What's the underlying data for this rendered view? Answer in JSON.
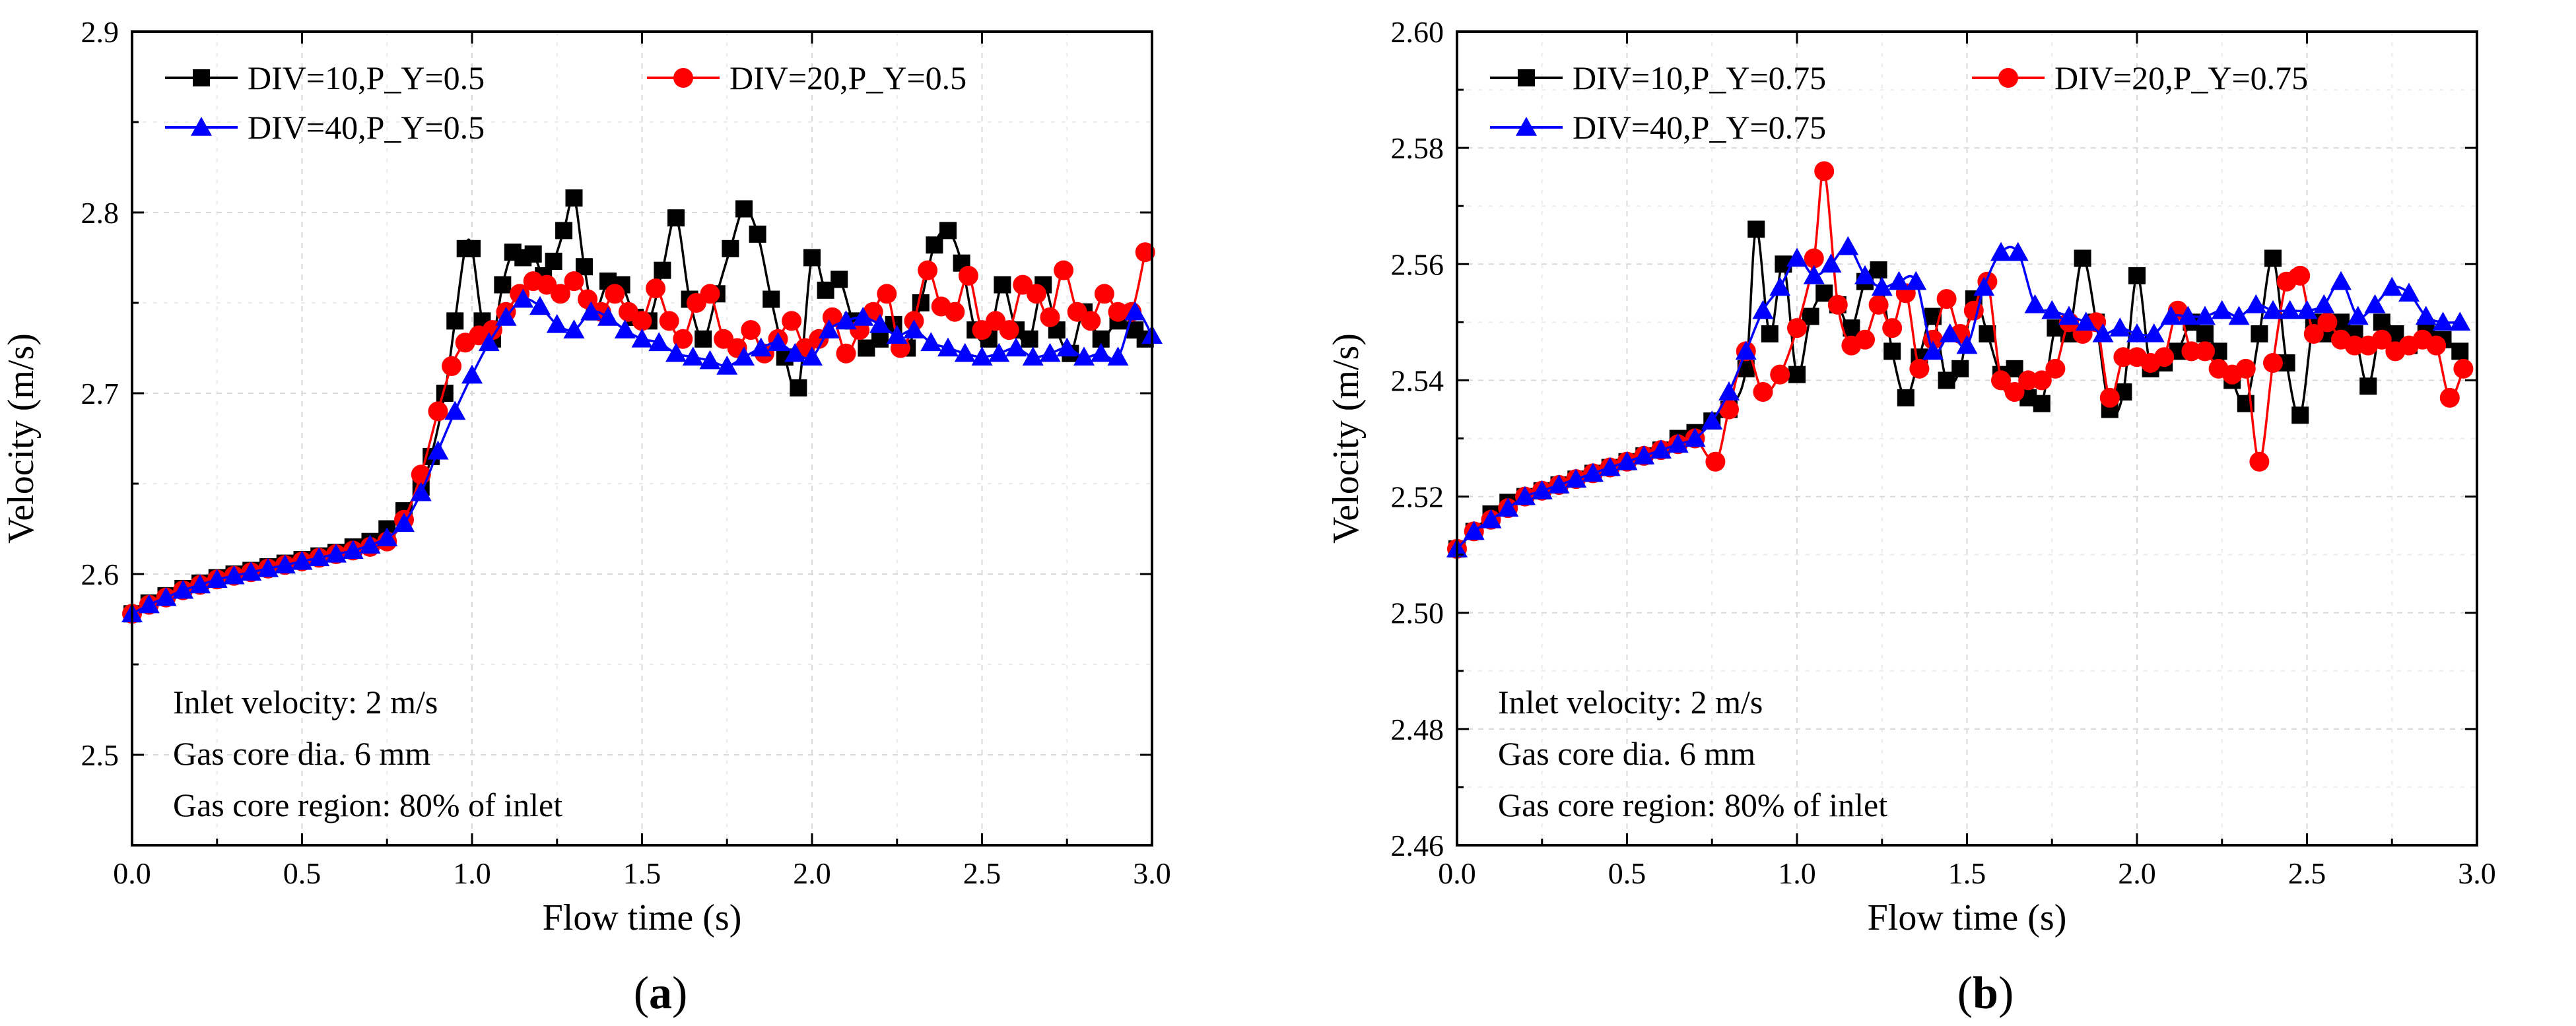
{
  "chart_data": [
    {
      "type": "line",
      "panel_label": "a",
      "xlabel": "Flow time (s)",
      "ylabel": "Velocity (m/s)",
      "xlim": [
        0.0,
        3.0
      ],
      "ylim": [
        2.45,
        2.9
      ],
      "xticks": [
        "0.0",
        "0.5",
        "1.0",
        "1.5",
        "2.0",
        "2.5",
        "3.0"
      ],
      "yticks": [
        "2.5",
        "2.6",
        "2.7",
        "2.8",
        "2.9"
      ],
      "ytick_values": [
        2.5,
        2.6,
        2.7,
        2.8,
        2.9
      ],
      "grid": true,
      "legend_position": "top-left",
      "annotations": [
        "Inlet velocity: 2 m/s",
        "Gas core dia. 6 mm",
        "Gas core region: 80% of inlet"
      ],
      "series": [
        {
          "name": "DIV=10,P_Y=0.5",
          "color": "#000000",
          "marker": "square",
          "x": [
            0.0,
            0.05,
            0.1,
            0.15,
            0.2,
            0.25,
            0.3,
            0.35,
            0.4,
            0.45,
            0.5,
            0.55,
            0.6,
            0.65,
            0.7,
            0.75,
            0.8,
            0.85,
            0.88,
            0.92,
            0.95,
            0.98,
            1.0,
            1.03,
            1.06,
            1.09,
            1.12,
            1.15,
            1.18,
            1.21,
            1.24,
            1.27,
            1.3,
            1.33,
            1.36,
            1.4,
            1.44,
            1.48,
            1.52,
            1.56,
            1.6,
            1.64,
            1.68,
            1.72,
            1.76,
            1.8,
            1.84,
            1.88,
            1.92,
            1.96,
            2.0,
            2.04,
            2.08,
            2.12,
            2.16,
            2.2,
            2.24,
            2.28,
            2.32,
            2.36,
            2.4,
            2.44,
            2.48,
            2.52,
            2.56,
            2.6,
            2.64,
            2.68,
            2.72,
            2.76,
            2.8,
            2.85,
            2.9,
            2.95,
            2.98
          ],
          "y": [
            2.578,
            2.584,
            2.588,
            2.592,
            2.595,
            2.598,
            2.6,
            2.602,
            2.604,
            2.606,
            2.608,
            2.61,
            2.612,
            2.615,
            2.618,
            2.625,
            2.635,
            2.648,
            2.665,
            2.7,
            2.74,
            2.78,
            2.78,
            2.74,
            2.73,
            2.76,
            2.778,
            2.775,
            2.777,
            2.765,
            2.773,
            2.79,
            2.808,
            2.77,
            2.745,
            2.762,
            2.76,
            2.742,
            2.74,
            2.768,
            2.797,
            2.752,
            2.73,
            2.755,
            2.78,
            2.802,
            2.788,
            2.752,
            2.72,
            2.703,
            2.775,
            2.757,
            2.763,
            2.74,
            2.725,
            2.73,
            2.738,
            2.725,
            2.75,
            2.782,
            2.79,
            2.772,
            2.735,
            2.73,
            2.76,
            2.735,
            2.73,
            2.76,
            2.735,
            2.722,
            2.745,
            2.73,
            2.74,
            2.735,
            2.73
          ]
        },
        {
          "name": "DIV=20,P_Y=0.5",
          "color": "#ff0000",
          "marker": "circle",
          "x": [
            0.0,
            0.05,
            0.1,
            0.15,
            0.2,
            0.25,
            0.3,
            0.35,
            0.4,
            0.45,
            0.5,
            0.55,
            0.6,
            0.65,
            0.7,
            0.75,
            0.8,
            0.85,
            0.9,
            0.94,
            0.98,
            1.02,
            1.06,
            1.1,
            1.14,
            1.18,
            1.22,
            1.26,
            1.3,
            1.34,
            1.38,
            1.42,
            1.46,
            1.5,
            1.54,
            1.58,
            1.62,
            1.66,
            1.7,
            1.74,
            1.78,
            1.82,
            1.86,
            1.9,
            1.94,
            1.98,
            2.02,
            2.06,
            2.1,
            2.14,
            2.18,
            2.22,
            2.26,
            2.3,
            2.34,
            2.38,
            2.42,
            2.46,
            2.5,
            2.54,
            2.58,
            2.62,
            2.66,
            2.7,
            2.74,
            2.78,
            2.82,
            2.86,
            2.9,
            2.94,
            2.98
          ],
          "y": [
            2.578,
            2.583,
            2.587,
            2.591,
            2.594,
            2.597,
            2.599,
            2.601,
            2.603,
            2.605,
            2.607,
            2.609,
            2.611,
            2.613,
            2.615,
            2.618,
            2.63,
            2.655,
            2.69,
            2.715,
            2.728,
            2.732,
            2.735,
            2.745,
            2.755,
            2.762,
            2.76,
            2.755,
            2.762,
            2.752,
            2.745,
            2.755,
            2.745,
            2.74,
            2.758,
            2.74,
            2.73,
            2.75,
            2.755,
            2.73,
            2.725,
            2.735,
            2.722,
            2.73,
            2.74,
            2.725,
            2.73,
            2.742,
            2.722,
            2.735,
            2.745,
            2.755,
            2.725,
            2.74,
            2.768,
            2.748,
            2.745,
            2.765,
            2.735,
            2.74,
            2.735,
            2.76,
            2.755,
            2.742,
            2.768,
            2.745,
            2.74,
            2.755,
            2.745,
            2.745,
            2.778
          ]
        },
        {
          "name": "DIV=40,P_Y=0.5",
          "color": "#0000ff",
          "marker": "triangle",
          "x": [
            0.0,
            0.05,
            0.1,
            0.15,
            0.2,
            0.25,
            0.3,
            0.35,
            0.4,
            0.45,
            0.5,
            0.55,
            0.6,
            0.65,
            0.7,
            0.75,
            0.8,
            0.85,
            0.9,
            0.95,
            1.0,
            1.05,
            1.1,
            1.15,
            1.2,
            1.25,
            1.3,
            1.35,
            1.4,
            1.45,
            1.5,
            1.55,
            1.6,
            1.65,
            1.7,
            1.75,
            1.8,
            1.85,
            1.9,
            1.95,
            2.0,
            2.05,
            2.1,
            2.15,
            2.2,
            2.25,
            2.3,
            2.35,
            2.4,
            2.45,
            2.5,
            2.55,
            2.6,
            2.65,
            2.7,
            2.75,
            2.8,
            2.85,
            2.9,
            2.95,
            3.0
          ],
          "y": [
            2.578,
            2.583,
            2.587,
            2.591,
            2.594,
            2.597,
            2.599,
            2.601,
            2.603,
            2.605,
            2.607,
            2.609,
            2.611,
            2.613,
            2.616,
            2.62,
            2.628,
            2.645,
            2.668,
            2.69,
            2.71,
            2.728,
            2.742,
            2.752,
            2.748,
            2.738,
            2.735,
            2.745,
            2.742,
            2.735,
            2.73,
            2.728,
            2.722,
            2.72,
            2.718,
            2.715,
            2.72,
            2.725,
            2.728,
            2.722,
            2.72,
            2.735,
            2.74,
            2.742,
            2.738,
            2.732,
            2.735,
            2.728,
            2.725,
            2.722,
            2.72,
            2.722,
            2.725,
            2.72,
            2.722,
            2.725,
            2.72,
            2.722,
            2.72,
            2.745,
            2.732
          ]
        }
      ]
    },
    {
      "type": "line",
      "panel_label": "b",
      "xlabel": "Flow time (s)",
      "ylabel": "Velocity (m/s)",
      "xlim": [
        0.0,
        3.0
      ],
      "ylim": [
        2.46,
        2.6
      ],
      "xticks": [
        "0.0",
        "0.5",
        "1.0",
        "1.5",
        "2.0",
        "2.5",
        "3.0"
      ],
      "yticks": [
        "2.46",
        "2.48",
        "2.50",
        "2.52",
        "2.54",
        "2.56",
        "2.58",
        "2.60"
      ],
      "ytick_values": [
        2.46,
        2.48,
        2.5,
        2.52,
        2.54,
        2.56,
        2.58,
        2.6
      ],
      "grid": true,
      "legend_position": "top-left",
      "annotations": [
        "Inlet velocity: 2 m/s",
        "Gas core dia. 6 mm",
        "Gas core region: 80% of inlet"
      ],
      "series": [
        {
          "name": "DIV=10,P_Y=0.75",
          "color": "#000000",
          "marker": "square",
          "x": [
            0.0,
            0.05,
            0.1,
            0.15,
            0.2,
            0.25,
            0.3,
            0.35,
            0.4,
            0.45,
            0.5,
            0.55,
            0.6,
            0.65,
            0.7,
            0.75,
            0.8,
            0.85,
            0.88,
            0.92,
            0.96,
            1.0,
            1.04,
            1.08,
            1.12,
            1.16,
            1.2,
            1.24,
            1.28,
            1.32,
            1.36,
            1.4,
            1.44,
            1.48,
            1.52,
            1.56,
            1.6,
            1.64,
            1.68,
            1.72,
            1.76,
            1.8,
            1.84,
            1.88,
            1.92,
            1.96,
            2.0,
            2.04,
            2.08,
            2.12,
            2.16,
            2.2,
            2.24,
            2.28,
            2.32,
            2.36,
            2.4,
            2.44,
            2.48,
            2.52,
            2.56,
            2.6,
            2.64,
            2.68,
            2.72,
            2.76,
            2.8,
            2.85,
            2.9,
            2.95
          ],
          "y": [
            2.511,
            2.514,
            2.517,
            2.519,
            2.52,
            2.521,
            2.522,
            2.523,
            2.524,
            2.525,
            2.526,
            2.527,
            2.528,
            2.53,
            2.531,
            2.533,
            2.535,
            2.542,
            2.566,
            2.548,
            2.56,
            2.541,
            2.551,
            2.555,
            2.553,
            2.549,
            2.557,
            2.559,
            2.545,
            2.537,
            2.544,
            2.551,
            2.54,
            2.542,
            2.554,
            2.548,
            2.541,
            2.542,
            2.537,
            2.536,
            2.549,
            2.548,
            2.561,
            2.55,
            2.535,
            2.538,
            2.558,
            2.542,
            2.543,
            2.545,
            2.55,
            2.548,
            2.545,
            2.54,
            2.536,
            2.548,
            2.561,
            2.543,
            2.534,
            2.55,
            2.548,
            2.55,
            2.548,
            2.539,
            2.55,
            2.548,
            2.546,
            2.549,
            2.547,
            2.545
          ]
        },
        {
          "name": "DIV=20,P_Y=0.75",
          "color": "#ff0000",
          "marker": "circle",
          "x": [
            0.0,
            0.05,
            0.1,
            0.15,
            0.2,
            0.25,
            0.3,
            0.35,
            0.4,
            0.45,
            0.5,
            0.55,
            0.6,
            0.65,
            0.7,
            0.76,
            0.8,
            0.85,
            0.9,
            0.95,
            1.0,
            1.05,
            1.08,
            1.12,
            1.16,
            1.2,
            1.24,
            1.28,
            1.32,
            1.36,
            1.4,
            1.44,
            1.48,
            1.52,
            1.56,
            1.6,
            1.64,
            1.68,
            1.72,
            1.76,
            1.8,
            1.84,
            1.88,
            1.92,
            1.96,
            2.0,
            2.04,
            2.08,
            2.12,
            2.16,
            2.2,
            2.24,
            2.28,
            2.32,
            2.36,
            2.4,
            2.44,
            2.48,
            2.52,
            2.56,
            2.6,
            2.64,
            2.68,
            2.72,
            2.76,
            2.8,
            2.84,
            2.88,
            2.92,
            2.96
          ],
          "y": [
            2.511,
            2.514,
            2.516,
            2.518,
            2.52,
            2.521,
            2.522,
            2.523,
            2.524,
            2.525,
            2.526,
            2.527,
            2.528,
            2.529,
            2.53,
            2.526,
            2.535,
            2.545,
            2.538,
            2.541,
            2.549,
            2.561,
            2.576,
            2.553,
            2.546,
            2.547,
            2.553,
            2.549,
            2.555,
            2.542,
            2.547,
            2.554,
            2.548,
            2.552,
            2.557,
            2.54,
            2.538,
            2.54,
            2.54,
            2.542,
            2.55,
            2.548,
            2.55,
            2.537,
            2.544,
            2.544,
            2.543,
            2.544,
            2.552,
            2.545,
            2.545,
            2.542,
            2.541,
            2.542,
            2.526,
            2.543,
            2.557,
            2.558,
            2.548,
            2.55,
            2.547,
            2.546,
            2.546,
            2.547,
            2.545,
            2.546,
            2.547,
            2.546,
            2.537,
            2.542
          ]
        },
        {
          "name": "DIV=40,P_Y=0.75",
          "color": "#0000ff",
          "marker": "triangle",
          "x": [
            0.0,
            0.05,
            0.1,
            0.15,
            0.2,
            0.25,
            0.3,
            0.35,
            0.4,
            0.45,
            0.5,
            0.55,
            0.6,
            0.65,
            0.7,
            0.75,
            0.8,
            0.85,
            0.9,
            0.95,
            1.0,
            1.05,
            1.1,
            1.15,
            1.2,
            1.25,
            1.3,
            1.35,
            1.4,
            1.45,
            1.5,
            1.55,
            1.6,
            1.65,
            1.7,
            1.75,
            1.8,
            1.85,
            1.9,
            1.95,
            2.0,
            2.05,
            2.1,
            2.15,
            2.2,
            2.25,
            2.3,
            2.35,
            2.4,
            2.45,
            2.5,
            2.55,
            2.6,
            2.65,
            2.7,
            2.75,
            2.8,
            2.85,
            2.9,
            2.95
          ],
          "y": [
            2.511,
            2.514,
            2.516,
            2.518,
            2.52,
            2.521,
            2.522,
            2.523,
            2.524,
            2.525,
            2.526,
            2.527,
            2.528,
            2.529,
            2.53,
            2.533,
            2.538,
            2.545,
            2.552,
            2.556,
            2.561,
            2.558,
            2.56,
            2.563,
            2.558,
            2.556,
            2.557,
            2.557,
            2.545,
            2.548,
            2.546,
            2.556,
            2.562,
            2.562,
            2.553,
            2.552,
            2.551,
            2.55,
            2.548,
            2.549,
            2.548,
            2.548,
            2.551,
            2.551,
            2.551,
            2.552,
            2.551,
            2.553,
            2.552,
            2.552,
            2.552,
            2.553,
            2.557,
            2.551,
            2.553,
            2.556,
            2.555,
            2.551,
            2.55,
            2.55
          ]
        }
      ]
    }
  ]
}
